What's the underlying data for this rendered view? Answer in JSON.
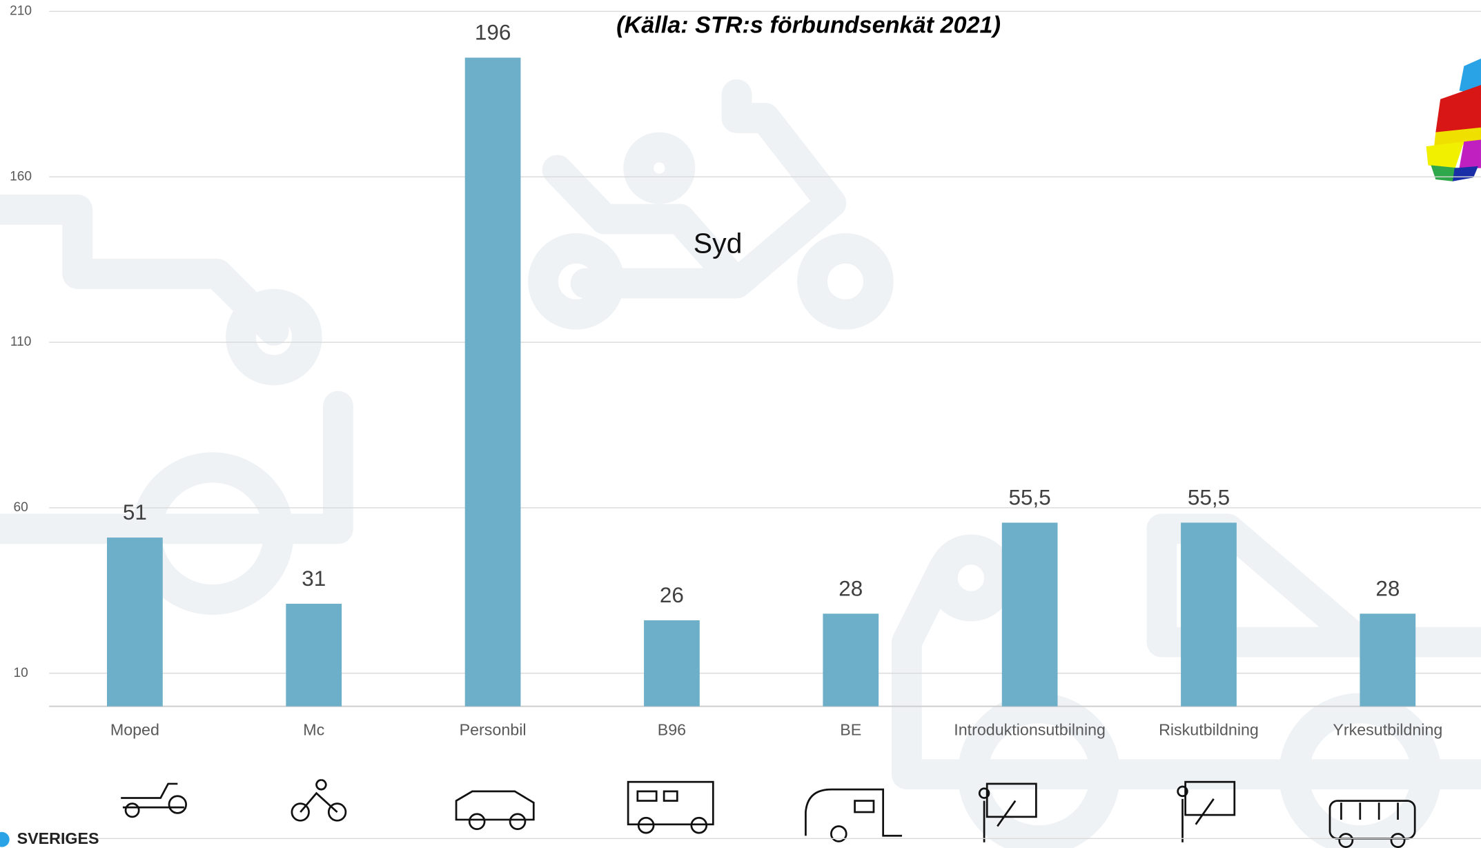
{
  "chart_data": {
    "type": "bar",
    "subtitle": "(Källa: STR:s förbundsenkät 2021)",
    "annotation": "Syd",
    "footer": "SVERIGES",
    "categories": [
      "Moped",
      "Mc",
      "Personbil",
      "B96",
      "BE",
      "Introduktionsutbilning",
      "Riskutbildning",
      "Yrkesutbildning"
    ],
    "values": [
      51,
      31,
      196,
      26,
      28,
      55.5,
      55.5,
      28
    ],
    "value_labels": [
      "51",
      "31",
      "196",
      "26",
      "28",
      "55,5",
      "55,5",
      "28"
    ],
    "color": "#6daec8",
    "ylim": [
      0,
      210
    ],
    "yticks": [
      10,
      60,
      110,
      160,
      210
    ],
    "grid": true
  }
}
